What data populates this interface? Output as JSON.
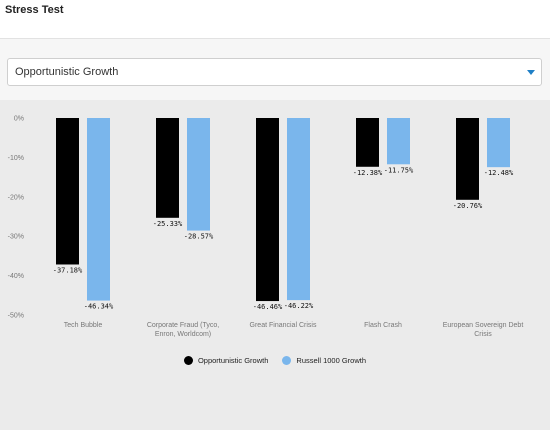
{
  "header": {
    "title": "Stress Test"
  },
  "selector": {
    "value": "Opportunistic Growth"
  },
  "colors": {
    "series1": "#000000",
    "series2": "#7ab6ec",
    "accent": "#1f7fc6"
  },
  "chart_data": {
    "type": "bar",
    "categories": [
      "Tech Bubble",
      "Corporate Fraud (Tyco,\nEnron, Worldcom)",
      "Great Financial Crisis",
      "Flash Crash",
      "European Sovereign Debt\nCrisis"
    ],
    "series": [
      {
        "name": "Opportunistic Growth",
        "values": [
          -37.18,
          -25.33,
          -46.46,
          -12.38,
          -20.76
        ],
        "labels": [
          "-37.18%",
          "-25.33%",
          "-46.46%",
          "-12.38%",
          "-20.76%"
        ]
      },
      {
        "name": "Russell 1000 Growth",
        "values": [
          -46.34,
          -28.57,
          -46.22,
          -11.75,
          -12.48
        ],
        "labels": [
          "-46.34%",
          "-28.57%",
          "-46.22%",
          "-11.75%",
          "-12.48%"
        ]
      }
    ],
    "yticks": [
      "0%",
      "-10%",
      "-20%",
      "-30%",
      "-40%",
      "-50%"
    ],
    "ylim": [
      -50,
      0
    ],
    "grid": false,
    "legend_position": "bottom"
  }
}
